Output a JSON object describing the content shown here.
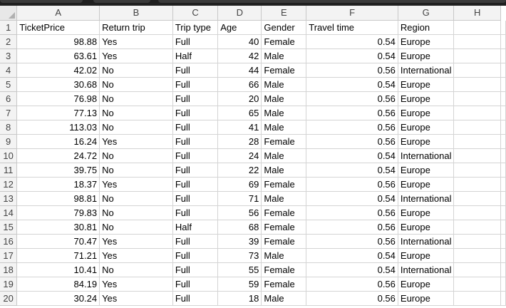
{
  "sheet": {
    "column_headers": [
      "A",
      "B",
      "C",
      "D",
      "E",
      "F",
      "G",
      "H"
    ],
    "row_numbers": [
      "1",
      "2",
      "3",
      "4",
      "5",
      "6",
      "7",
      "8",
      "9",
      "10",
      "11",
      "12",
      "13",
      "14",
      "15",
      "16",
      "17",
      "18",
      "19",
      "20"
    ],
    "field_names": [
      "TicketPrice",
      "Return trip",
      "Trip type",
      "Age",
      "Gender",
      "Travel time",
      "Region",
      ""
    ],
    "rows": [
      [
        "98.88",
        "Yes",
        "Full",
        "40",
        "Female",
        "0.54",
        "Europe",
        ""
      ],
      [
        "63.61",
        "Yes",
        "Half",
        "42",
        "Male",
        "0.54",
        "Europe",
        ""
      ],
      [
        "42.02",
        "No",
        "Full",
        "44",
        "Female",
        "0.56",
        "International",
        ""
      ],
      [
        "30.68",
        "No",
        "Full",
        "66",
        "Male",
        "0.54",
        "Europe",
        ""
      ],
      [
        "76.98",
        "No",
        "Full",
        "20",
        "Male",
        "0.56",
        "Europe",
        ""
      ],
      [
        "77.13",
        "No",
        "Full",
        "65",
        "Male",
        "0.56",
        "Europe",
        ""
      ],
      [
        "113.03",
        "No",
        "Full",
        "41",
        "Male",
        "0.56",
        "Europe",
        ""
      ],
      [
        "16.24",
        "Yes",
        "Full",
        "28",
        "Female",
        "0.56",
        "Europe",
        ""
      ],
      [
        "24.72",
        "No",
        "Full",
        "24",
        "Male",
        "0.54",
        "International",
        ""
      ],
      [
        "39.75",
        "No",
        "Full",
        "22",
        "Male",
        "0.54",
        "Europe",
        ""
      ],
      [
        "18.37",
        "Yes",
        "Full",
        "69",
        "Female",
        "0.56",
        "Europe",
        ""
      ],
      [
        "98.81",
        "No",
        "Full",
        "71",
        "Male",
        "0.54",
        "International",
        ""
      ],
      [
        "79.83",
        "No",
        "Full",
        "56",
        "Female",
        "0.56",
        "Europe",
        ""
      ],
      [
        "30.81",
        "No",
        "Half",
        "68",
        "Female",
        "0.56",
        "Europe",
        ""
      ],
      [
        "70.47",
        "Yes",
        "Full",
        "39",
        "Female",
        "0.56",
        "International",
        ""
      ],
      [
        "71.21",
        "Yes",
        "Full",
        "73",
        "Male",
        "0.54",
        "Europe",
        ""
      ],
      [
        "10.41",
        "No",
        "Full",
        "55",
        "Female",
        "0.54",
        "International",
        ""
      ],
      [
        "84.19",
        "Yes",
        "Full",
        "59",
        "Female",
        "0.56",
        "Europe",
        ""
      ],
      [
        "30.24",
        "Yes",
        "Full",
        "18",
        "Male",
        "0.56",
        "Europe",
        ""
      ]
    ],
    "numeric_columns": [
      0,
      3,
      5
    ]
  },
  "colors": {
    "header_bg": "#f3f3f3",
    "gridline": "#d4d4d4",
    "top_strip": "#1f1f1f"
  }
}
